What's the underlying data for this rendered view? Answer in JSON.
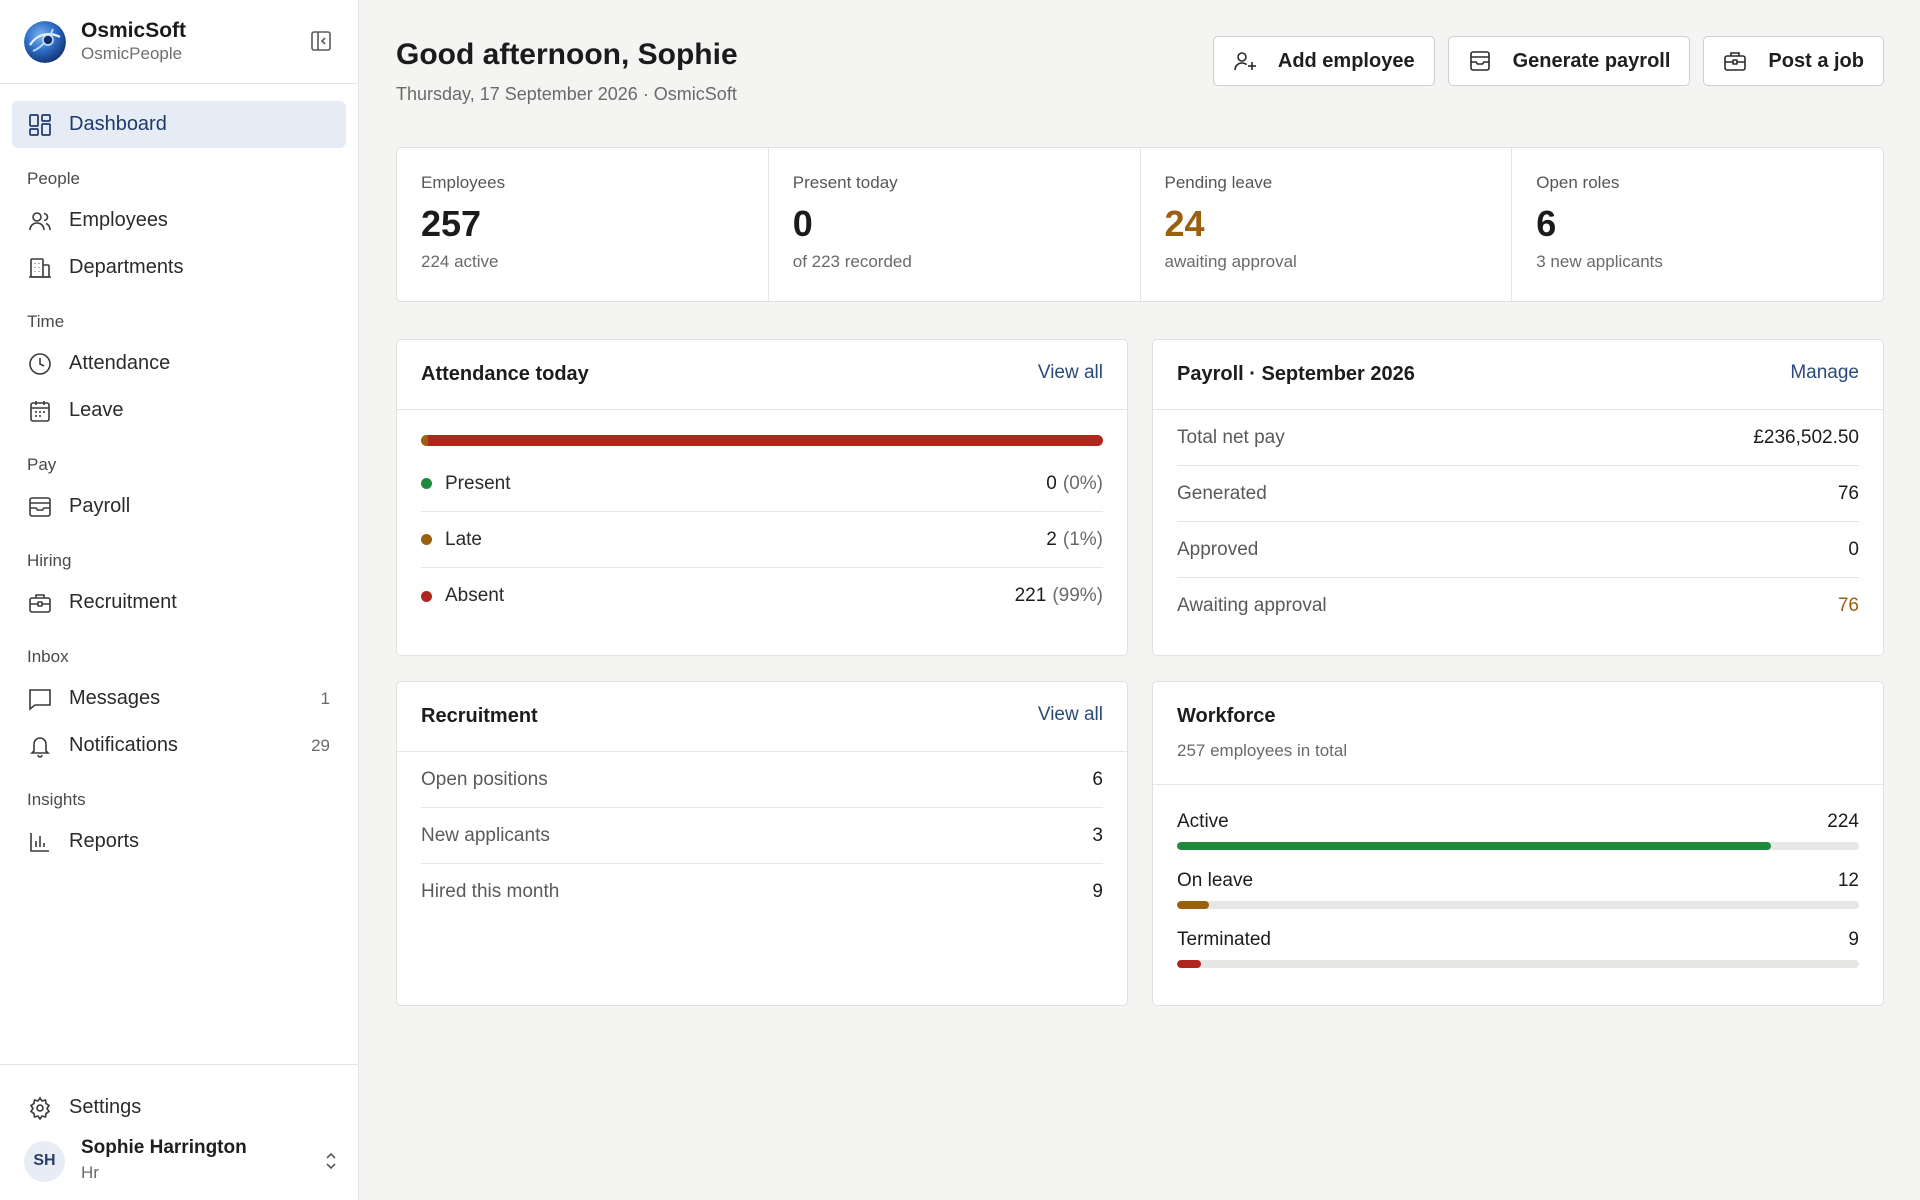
{
  "brand": {
    "name": "OsmicSoft",
    "product": "OsmicPeople"
  },
  "sidebar": {
    "dashboard": {
      "label": "Dashboard",
      "icon": "dashboard-icon"
    },
    "sections": {
      "people": "People",
      "time": "Time",
      "pay": "Pay",
      "hiring": "Hiring",
      "inbox": "Inbox",
      "insights": "Insights"
    },
    "items": {
      "employees": {
        "label": "Employees",
        "icon": "users-icon"
      },
      "departments": {
        "label": "Departments",
        "icon": "building-icon"
      },
      "attendance": {
        "label": "Attendance",
        "icon": "clock-icon"
      },
      "leave": {
        "label": "Leave",
        "icon": "calendar-icon"
      },
      "payroll": {
        "label": "Payroll",
        "icon": "wallet-icon"
      },
      "recruitment": {
        "label": "Recruitment",
        "icon": "briefcase-icon"
      },
      "messages": {
        "label": "Messages",
        "count": "1",
        "icon": "message-icon"
      },
      "notifications": {
        "label": "Notifications",
        "count": "29",
        "icon": "bell-icon"
      },
      "reports": {
        "label": "Reports",
        "icon": "bar-chart-icon"
      }
    },
    "settings": {
      "label": "Settings",
      "icon": "gear-icon"
    },
    "user": {
      "initials": "SH",
      "name": "Sophie Harrington",
      "role": "Hr"
    }
  },
  "header": {
    "greeting": "Good afternoon, Sophie",
    "date_line": "Thursday, 17 September 2026 · OsmicSoft",
    "actions": {
      "add_employee": "Add employee",
      "generate_payroll": "Generate payroll",
      "post_job": "Post a job"
    }
  },
  "stats": [
    {
      "label": "Employees",
      "value": "257",
      "sub": "224 active"
    },
    {
      "label": "Present today",
      "value": "0",
      "sub": "of 223 recorded"
    },
    {
      "label": "Pending leave",
      "value": "24",
      "sub": "awaiting approval"
    },
    {
      "label": "Open roles",
      "value": "6",
      "sub": "3 new applicants"
    }
  ],
  "attendance": {
    "title": "Attendance today",
    "link": "View all",
    "bar_fractions": {
      "present": 0,
      "late": 0.01,
      "absent": 0.99
    },
    "rows": [
      {
        "label": "Present",
        "value": "0",
        "pct": "(0%)"
      },
      {
        "label": "Late",
        "value": "2",
        "pct": "(1%)"
      },
      {
        "label": "Absent",
        "value": "221",
        "pct": "(99%)"
      }
    ]
  },
  "payroll": {
    "title": "Payroll · September 2026",
    "link": "Manage",
    "rows": [
      {
        "label": "Total net pay",
        "value": "£236,502.50"
      },
      {
        "label": "Generated",
        "value": "76"
      },
      {
        "label": "Approved",
        "value": "0"
      },
      {
        "label": "Awaiting approval",
        "value": "76"
      }
    ]
  },
  "recruitment": {
    "title": "Recruitment",
    "link": "View all",
    "rows": [
      {
        "label": "Open positions",
        "value": "6"
      },
      {
        "label": "New applicants",
        "value": "3"
      },
      {
        "label": "Hired this month",
        "value": "9"
      }
    ]
  },
  "workforce": {
    "title": "Workforce",
    "subtitle": "257 employees in total",
    "total": 257,
    "items": [
      {
        "label": "Active",
        "value": "224",
        "count": 224
      },
      {
        "label": "On leave",
        "value": "12",
        "count": 12
      },
      {
        "label": "Terminated",
        "value": "9",
        "count": 9
      }
    ]
  },
  "colors": {
    "accent": "#1f3a68",
    "active_nav_bg": "#e6ecf6",
    "green": "#1f8a3e",
    "amber": "#9a5f0f",
    "red": "#b0261f"
  }
}
